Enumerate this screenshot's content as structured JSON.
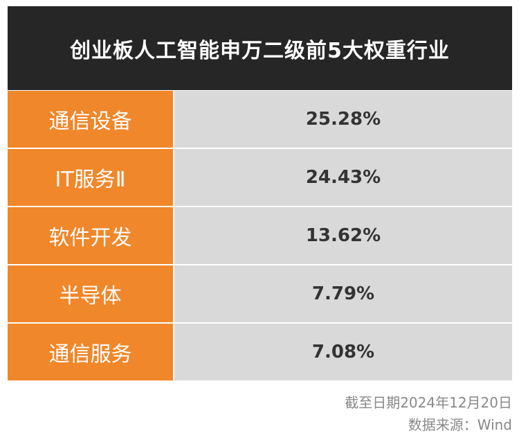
{
  "chart_data": {
    "type": "table",
    "title": "创业板人工智能申万二级前5大权重行业",
    "columns": [
      "",
      ""
    ],
    "rows": [
      {
        "name": "通信设备",
        "value": "25.28%"
      },
      {
        "name": "IT服务Ⅱ",
        "value": "24.43%"
      },
      {
        "name": "软件开发",
        "value": "13.62%"
      },
      {
        "name": "半导体",
        "value": "7.79%"
      },
      {
        "name": "通信服务",
        "value": "7.08%"
      }
    ],
    "values": [
      25.28,
      24.43,
      13.62,
      7.79,
      7.08
    ],
    "unit": "%",
    "colors": {
      "header_bg": "#262626",
      "name_bg": "#f0872a",
      "value_bg": "#d9d9d9"
    }
  },
  "footer": {
    "date_note": "截至日期2024年12月20日",
    "source": "数据来源：Wind"
  }
}
